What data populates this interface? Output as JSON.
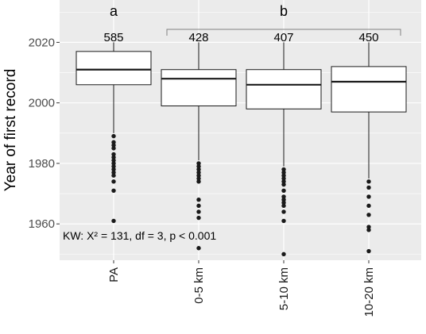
{
  "chart_data": {
    "type": "box",
    "categories": [
      "PA",
      "0-5 km",
      "5-10 km",
      "10-20 km"
    ],
    "ylabel": "Year of first record",
    "xlabel": "",
    "ylim": [
      1948,
      2034
    ],
    "yticks": [
      1960,
      1980,
      2000,
      2020
    ],
    "grid": true,
    "counts": [
      "585",
      "428",
      "407",
      "450"
    ],
    "boxes": [
      {
        "whisker_low": 1990,
        "q1": 2006,
        "median": 2011,
        "q3": 2017,
        "whisker_high": 2020,
        "outliers": [
          1989,
          1987,
          1986,
          1985,
          1983,
          1982,
          1981,
          1980,
          1979,
          1978,
          1977,
          1976,
          1974,
          1971,
          1961
        ]
      },
      {
        "whisker_low": 1981,
        "q1": 1999,
        "median": 2008,
        "q3": 2011,
        "whisker_high": 2020,
        "outliers": [
          1980,
          1979,
          1978,
          1977,
          1976,
          1975,
          1974,
          1968,
          1966,
          1964,
          1962,
          1952
        ]
      },
      {
        "whisker_low": 1979,
        "q1": 1998,
        "median": 2006,
        "q3": 2011,
        "whisker_high": 2020,
        "outliers": [
          1978,
          1977,
          1976,
          1975,
          1974,
          1973,
          1971,
          1969,
          1968,
          1967,
          1966,
          1964,
          1961,
          1950
        ]
      },
      {
        "whisker_low": 1975,
        "q1": 1997,
        "median": 2007,
        "q3": 2012,
        "whisker_high": 2020,
        "outliers": [
          1974,
          1972,
          1969,
          1966,
          1963,
          1959,
          1958,
          1951
        ]
      }
    ],
    "significance": [
      {
        "label": "a",
        "from": 0,
        "to": 0,
        "bracket": false
      },
      {
        "label": "b",
        "from": 1,
        "to": 3,
        "bracket": true
      }
    ],
    "annotation": "KW: X² = 131, df = 3, p < 0.001",
    "colors": {
      "panel": "#ebebeb",
      "grid": "#ffffff",
      "box_fill": "#ffffff",
      "ink": "#1a1a1a",
      "bracket": "#808080"
    }
  }
}
